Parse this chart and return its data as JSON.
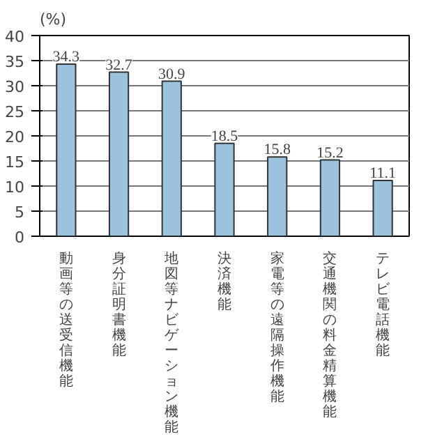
{
  "chart_data": {
    "type": "bar",
    "ylabel": "(%)",
    "categories": [
      "動画等の送受信機能",
      "身分証明書機能",
      "地図等ナビゲーション機能",
      "決済機能",
      "家電等の遠隔操作機能",
      "交通機関の料金精算機能",
      "テレビ電話機能"
    ],
    "values": [
      34.3,
      32.7,
      30.9,
      18.5,
      15.8,
      15.2,
      11.1
    ],
    "color": "#9cc3de",
    "ylim": [
      0,
      40
    ],
    "yticks": [
      0,
      5,
      10,
      15,
      20,
      25,
      30,
      35,
      40
    ],
    "grid": "y",
    "data_labels": true
  }
}
